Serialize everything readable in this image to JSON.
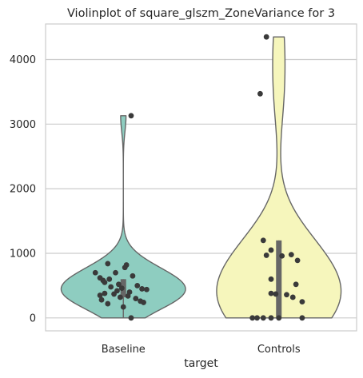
{
  "chart_data": {
    "type": "violin",
    "title": "Violinplot of square_glszm_ZoneVariance for 3",
    "xlabel": "target",
    "ylabel": "",
    "categories": [
      "Baseline",
      "Controls"
    ],
    "ylim": [
      -200,
      4550
    ],
    "yticks": [
      0,
      1000,
      2000,
      3000,
      4000
    ],
    "grid": "y",
    "palette": {
      "Baseline": "#8ecdc0",
      "Controls": "#f6f6bc"
    },
    "edge_color": "#666666",
    "point_color": "#3a3a3a",
    "violins": [
      {
        "name": "Baseline",
        "range": [
          0,
          3130
        ],
        "quartiles": [
          320,
          420,
          600
        ],
        "points": [
          {
            "x": -0.1,
            "y": 840
          },
          {
            "x": 0.02,
            "y": 820
          },
          {
            "x": 0.01,
            "y": 780
          },
          {
            "x": -0.05,
            "y": 700
          },
          {
            "x": -0.18,
            "y": 700
          },
          {
            "x": 0.06,
            "y": 650
          },
          {
            "x": -0.15,
            "y": 620
          },
          {
            "x": -0.09,
            "y": 600
          },
          {
            "x": -0.13,
            "y": 580
          },
          {
            "x": -0.12,
            "y": 550
          },
          {
            "x": -0.03,
            "y": 520
          },
          {
            "x": 0.09,
            "y": 500
          },
          {
            "x": -0.08,
            "y": 480
          },
          {
            "x": -0.01,
            "y": 460
          },
          {
            "x": 0.12,
            "y": 450
          },
          {
            "x": 0.15,
            "y": 440
          },
          {
            "x": -0.04,
            "y": 420
          },
          {
            "x": 0.04,
            "y": 400
          },
          {
            "x": -0.12,
            "y": 380
          },
          {
            "x": -0.06,
            "y": 370
          },
          {
            "x": -0.15,
            "y": 350
          },
          {
            "x": 0.03,
            "y": 340
          },
          {
            "x": -0.02,
            "y": 320
          },
          {
            "x": 0.08,
            "y": 300
          },
          {
            "x": -0.14,
            "y": 280
          },
          {
            "x": 0.11,
            "y": 260
          },
          {
            "x": 0.13,
            "y": 240
          },
          {
            "x": -0.1,
            "y": 220
          },
          {
            "x": 0.0,
            "y": 170
          },
          {
            "x": 0.05,
            "y": 0
          },
          {
            "x": 0.05,
            "y": 3130
          }
        ]
      },
      {
        "name": "Controls",
        "range": [
          0,
          4350
        ],
        "quartiles": [
          0,
          350,
          1200
        ],
        "points": [
          {
            "x": -0.08,
            "y": 4350
          },
          {
            "x": -0.12,
            "y": 3470
          },
          {
            "x": -0.1,
            "y": 1200
          },
          {
            "x": -0.05,
            "y": 1050
          },
          {
            "x": 0.08,
            "y": 980
          },
          {
            "x": -0.08,
            "y": 970
          },
          {
            "x": 0.02,
            "y": 960
          },
          {
            "x": 0.12,
            "y": 890
          },
          {
            "x": -0.05,
            "y": 600
          },
          {
            "x": 0.11,
            "y": 520
          },
          {
            "x": -0.05,
            "y": 380
          },
          {
            "x": -0.02,
            "y": 370
          },
          {
            "x": 0.05,
            "y": 360
          },
          {
            "x": 0.09,
            "y": 320
          },
          {
            "x": 0.15,
            "y": 250
          },
          {
            "x": -0.17,
            "y": 0
          },
          {
            "x": -0.14,
            "y": 0
          },
          {
            "x": -0.1,
            "y": 0
          },
          {
            "x": -0.05,
            "y": 0
          },
          {
            "x": 0.0,
            "y": 0
          },
          {
            "x": 0.15,
            "y": 0
          }
        ]
      }
    ]
  }
}
